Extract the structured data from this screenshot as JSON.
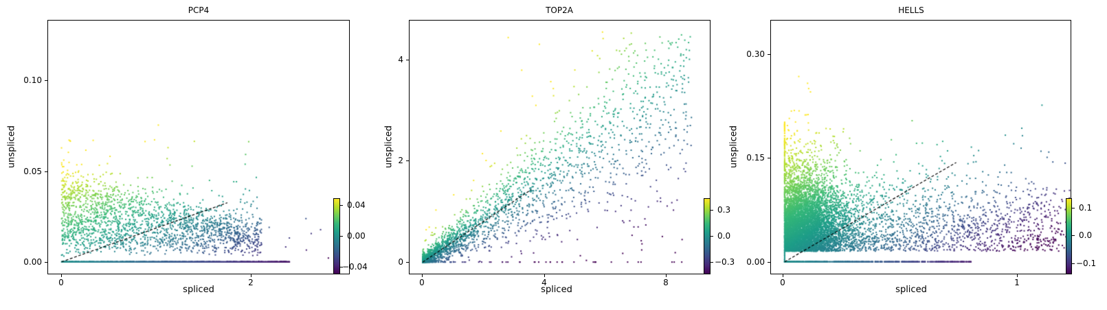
{
  "chart_data": [
    {
      "type": "scatter",
      "title": "PCP4",
      "xlabel": "spliced",
      "ylabel": "unspliced",
      "xticks": [
        {
          "value": 0,
          "label": "0"
        },
        {
          "value": 2,
          "label": "2"
        }
      ],
      "yticks": [
        {
          "value": 0.0,
          "label": "0.00"
        },
        {
          "value": 0.05,
          "label": "0.05"
        },
        {
          "value": 0.1,
          "label": "0.10"
        }
      ],
      "xlim": [
        -0.14,
        3.0
      ],
      "ylim": [
        -0.0065,
        0.133
      ],
      "grid": false,
      "colormap": "viridis",
      "colorbar": {
        "range": [
          -0.05,
          0.05
        ],
        "ticks": [
          {
            "value": 0.04,
            "label": "0.04"
          },
          {
            "value": 0.0,
            "label": "0.00"
          },
          {
            "value": -0.04,
            "label": "−0.04"
          }
        ]
      },
      "fit_line": {
        "style": "dashed",
        "color": "#000000",
        "x": [
          0,
          1.73
        ],
        "y": [
          0,
          0.0326
        ]
      },
      "point_cloud": {
        "n": 3200,
        "x_max": 2.9,
        "y_max": 0.128,
        "slope": 0.0188,
        "zero_row_fraction": 0.35,
        "spread": 0.022,
        "shape": "wedge"
      }
    },
    {
      "type": "scatter",
      "title": "TOP2A",
      "xlabel": "spliced",
      "ylabel": "unspliced",
      "xticks": [
        {
          "value": 0,
          "label": "0"
        },
        {
          "value": 4,
          "label": "4"
        },
        {
          "value": 8,
          "label": "8"
        }
      ],
      "yticks": [
        {
          "value": 0,
          "label": "0"
        },
        {
          "value": 2,
          "label": "2"
        },
        {
          "value": 4,
          "label": "4"
        }
      ],
      "xlim": [
        -0.43,
        9.4
      ],
      "ylim": [
        -0.23,
        4.8
      ],
      "grid": false,
      "colormap": "viridis",
      "colorbar": {
        "range": [
          -0.42,
          0.44
        ],
        "ticks": [
          {
            "value": 0.3,
            "label": "0.3"
          },
          {
            "value": 0.0,
            "label": "0.0"
          },
          {
            "value": -0.3,
            "label": "−0.3"
          }
        ]
      },
      "fit_line": {
        "style": "dashed",
        "color": "#000000",
        "x": [
          0,
          3.55
        ],
        "y": [
          0,
          1.44
        ]
      },
      "point_cloud": {
        "n": 2600,
        "x_max": 8.8,
        "y_max": 4.6,
        "slope": 0.405,
        "zero_row_fraction": 0.0,
        "spread": 0.22,
        "shape": "linear"
      }
    },
    {
      "type": "scatter",
      "title": "HELLS",
      "xlabel": "spliced",
      "ylabel": "unspliced",
      "xticks": [
        {
          "value": 0,
          "label": "0"
        },
        {
          "value": 1,
          "label": "1"
        }
      ],
      "yticks": [
        {
          "value": 0.0,
          "label": "0.00"
        },
        {
          "value": 0.15,
          "label": "0.15"
        },
        {
          "value": 0.3,
          "label": "0.30"
        }
      ],
      "xlim": [
        -0.055,
        1.15
      ],
      "ylim": [
        -0.017,
        0.345
      ],
      "grid": false,
      "colormap": "viridis",
      "colorbar": {
        "range": [
          -0.14,
          0.14
        ],
        "ticks": [
          {
            "value": 0.1,
            "label": "0.1"
          },
          {
            "value": 0.0,
            "label": "0.0"
          },
          {
            "value": -0.1,
            "label": "−0.1"
          }
        ]
      },
      "fit_line": {
        "style": "dashed",
        "color": "#000000",
        "x": [
          0,
          0.69
        ],
        "y": [
          0,
          0.142
        ]
      },
      "point_cloud": {
        "n": 9000,
        "x_max": 1.1,
        "y_max": 0.33,
        "slope": 0.206,
        "zero_row_fraction": 0.08,
        "spread": 0.05,
        "shape": "dense-origin"
      }
    }
  ]
}
